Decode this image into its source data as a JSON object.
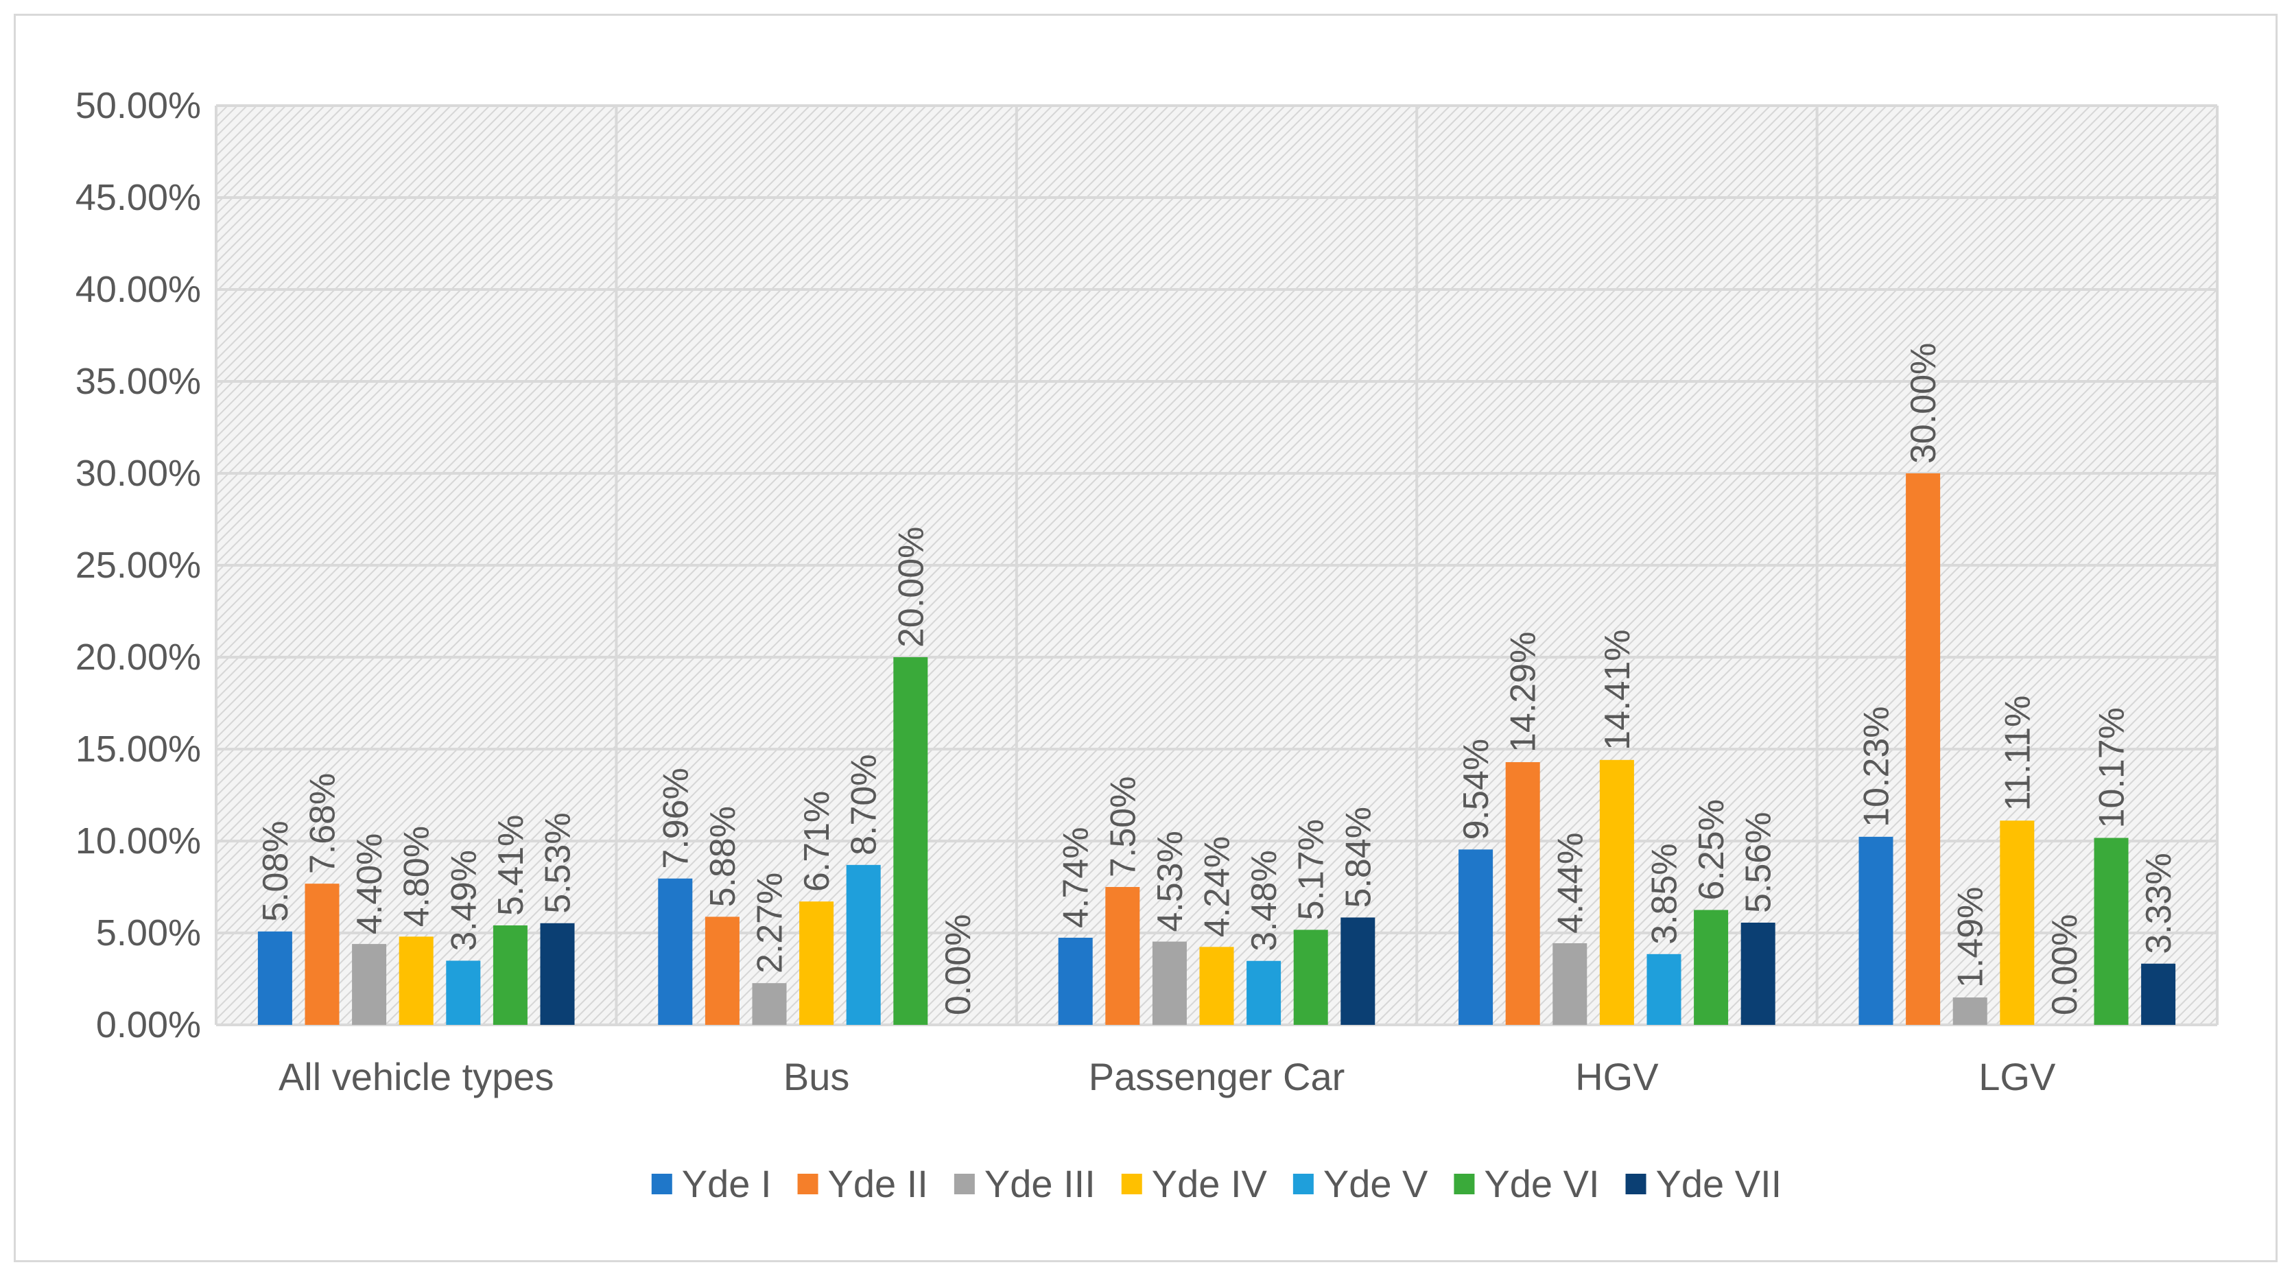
{
  "chart_data": {
    "type": "bar",
    "title": "",
    "xlabel": "",
    "ylabel": "",
    "ylim": [
      0,
      50
    ],
    "ytick_step": 5,
    "ytick_format": "percent_2dp",
    "grid": true,
    "legend_position": "bottom",
    "categories": [
      "All vehicle types",
      "Bus",
      "Passenger Car",
      "HGV",
      "LGV"
    ],
    "series": [
      {
        "name": "Yde I",
        "color": "#1f77c9",
        "values": [
          5.08,
          7.96,
          4.74,
          9.54,
          10.23
        ],
        "labels": [
          "5.08%",
          "7.96%",
          "4.74%",
          "9.54%",
          "10.23%"
        ]
      },
      {
        "name": "Yde II",
        "color": "#f57f2a",
        "values": [
          7.68,
          5.88,
          7.5,
          14.29,
          30.0
        ],
        "labels": [
          "7.68%",
          "5.88%",
          "7.50%",
          "14.29%",
          "30.00%"
        ]
      },
      {
        "name": "Yde III",
        "color": "#a5a5a5",
        "values": [
          4.4,
          2.27,
          4.53,
          4.44,
          1.49
        ],
        "labels": [
          "4.40%",
          "2.27%",
          "4.53%",
          "4.44%",
          "1.49%"
        ]
      },
      {
        "name": "Yde IV",
        "color": "#ffc000",
        "values": [
          4.8,
          6.71,
          4.24,
          14.41,
          11.11
        ],
        "labels": [
          "4.80%",
          "6.71%",
          "4.24%",
          "14.41%",
          "11.11%"
        ]
      },
      {
        "name": "Yde V",
        "color": "#1f9fdb",
        "values": [
          3.49,
          8.7,
          3.48,
          3.85,
          0.0
        ],
        "labels": [
          "3.49%",
          "8.70%",
          "3.48%",
          "3.85%",
          "0.00%"
        ]
      },
      {
        "name": "Yde VI",
        "color": "#3aaa3a",
        "values": [
          5.41,
          20.0,
          5.17,
          6.25,
          10.17
        ],
        "labels": [
          "5.41%",
          "20.00%",
          "5.17%",
          "6.25%",
          "10.17%"
        ]
      },
      {
        "name": "Yde VII",
        "color": "#0b3f73",
        "values": [
          5.53,
          0.0,
          5.84,
          5.56,
          3.33
        ],
        "labels": [
          "5.53%",
          "0.00%",
          "5.84%",
          "5.56%",
          "3.33%"
        ]
      }
    ]
  }
}
